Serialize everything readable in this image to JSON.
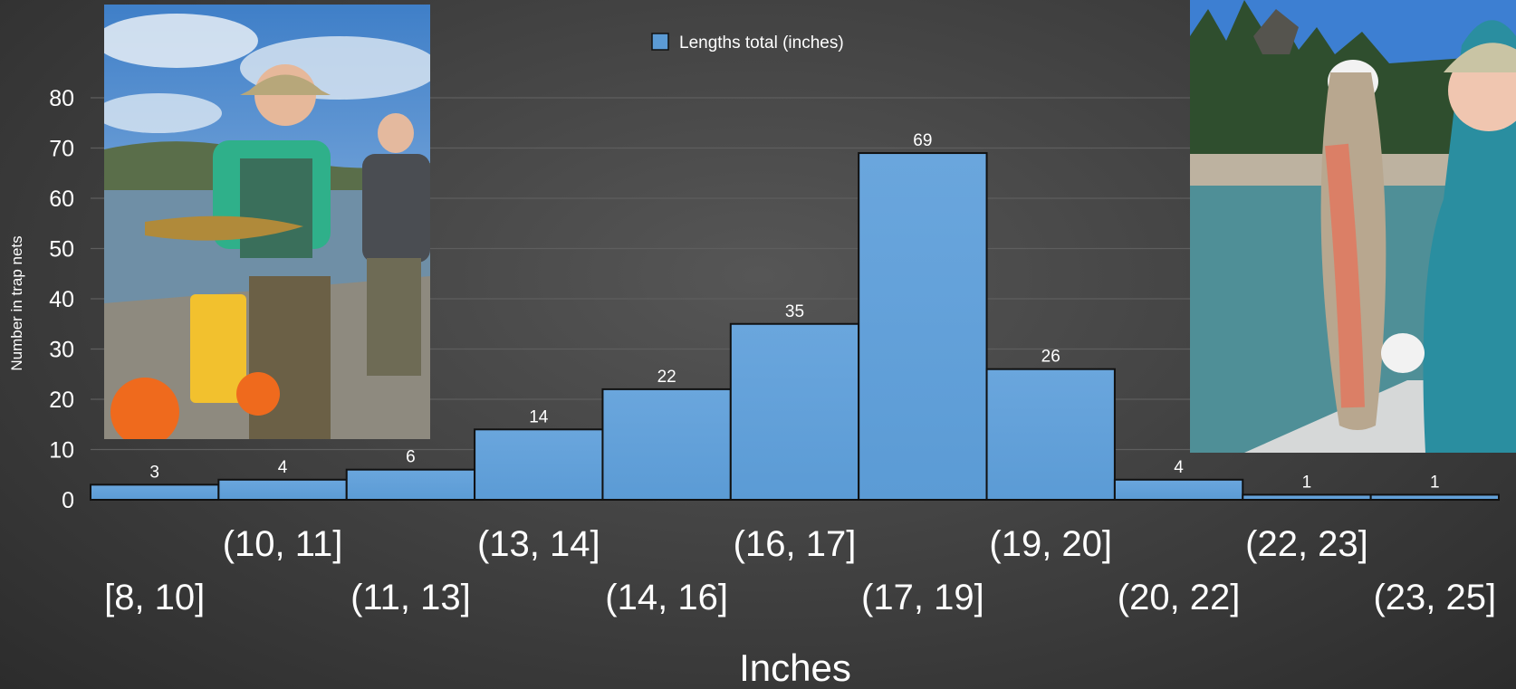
{
  "chart_data": {
    "type": "bar",
    "legend": {
      "label": "Lengths total (inches)",
      "position": "top-center",
      "color": "#5b9bd5"
    },
    "xlabel": "Inches",
    "ylabel": "Number in trap nets",
    "ylim": [
      0,
      80
    ],
    "yticks": [
      "0",
      "10",
      "20",
      "30",
      "40",
      "50",
      "60",
      "70",
      "80"
    ],
    "grid": true,
    "categories": [
      "[8, 10]",
      "(10, 11]",
      "(11, 13]",
      "(13, 14]",
      "(14, 16]",
      "(16, 17]",
      "(17, 19]",
      "(19, 20]",
      "(20, 22]",
      "(22, 23]",
      "(23, 25]"
    ],
    "values": [
      3,
      4,
      6,
      14,
      22,
      35,
      69,
      26,
      4,
      1,
      1
    ]
  },
  "colors": {
    "bar_fill": "#5b9bd5",
    "bar_fill_top": "#6aa6dd",
    "bar_stroke": "#111111",
    "text": "#ffffff",
    "gridline": "#5e5e5e",
    "background": "#404040"
  },
  "photos": {
    "left": {
      "icon": "photo-two-people-holding-brown-trout-on-boat"
    },
    "right": {
      "icon": "photo-person-holding-rainbow-trout"
    }
  }
}
